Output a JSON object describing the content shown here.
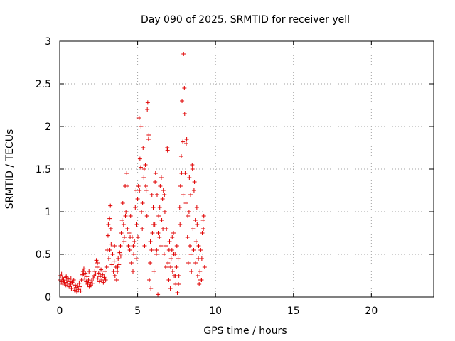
{
  "chart_data": {
    "type": "scatter",
    "title": "Day 090 of 2025, SRMTID for receiver yell",
    "xlabel": "GPS time / hours",
    "ylabel": "SRMTID / TECUs",
    "xlim": [
      0,
      24
    ],
    "ylim": [
      0,
      3
    ],
    "xticks": [
      "0",
      "5",
      "10",
      "15",
      "20"
    ],
    "yticks": [
      "0",
      "0.5",
      "1",
      "1.5",
      "2",
      "2.5",
      "3"
    ],
    "grid": true,
    "marker_color": "#e00000",
    "series": [
      {
        "name": "SRMTID",
        "points": [
          [
            0.0,
            0.2
          ],
          [
            0.05,
            0.25
          ],
          [
            0.1,
            0.18
          ],
          [
            0.15,
            0.22
          ],
          [
            0.2,
            0.15
          ],
          [
            0.25,
            0.2
          ],
          [
            0.3,
            0.17
          ],
          [
            0.35,
            0.23
          ],
          [
            0.4,
            0.14
          ],
          [
            0.45,
            0.19
          ],
          [
            0.5,
            0.16
          ],
          [
            0.55,
            0.21
          ],
          [
            0.6,
            0.12
          ],
          [
            0.65,
            0.18
          ],
          [
            0.7,
            0.15
          ],
          [
            0.75,
            0.1
          ],
          [
            0.8,
            0.17
          ],
          [
            0.85,
            0.13
          ],
          [
            0.9,
            0.2
          ],
          [
            0.95,
            0.08
          ],
          [
            1.0,
            0.14
          ],
          [
            1.05,
            0.11
          ],
          [
            1.1,
            0.06
          ],
          [
            1.15,
            0.13
          ],
          [
            1.2,
            0.09
          ],
          [
            1.25,
            0.16
          ],
          [
            1.3,
            0.12
          ],
          [
            1.35,
            0.07
          ],
          [
            1.4,
            0.2
          ],
          [
            1.45,
            0.26
          ],
          [
            1.5,
            0.3
          ],
          [
            1.55,
            0.33
          ],
          [
            1.6,
            0.22
          ],
          [
            1.65,
            0.28
          ],
          [
            1.7,
            0.18
          ],
          [
            1.75,
            0.24
          ],
          [
            1.8,
            0.15
          ],
          [
            1.85,
            0.2
          ],
          [
            1.9,
            0.12
          ],
          [
            1.95,
            0.17
          ],
          [
            2.0,
            0.14
          ],
          [
            2.05,
            0.19
          ],
          [
            2.1,
            0.16
          ],
          [
            2.15,
            0.22
          ],
          [
            2.2,
            0.25
          ],
          [
            2.25,
            0.3
          ],
          [
            2.3,
            0.27
          ],
          [
            2.35,
            0.43
          ],
          [
            2.4,
            0.35
          ],
          [
            2.45,
            0.22
          ],
          [
            2.5,
            0.28
          ],
          [
            2.55,
            0.18
          ],
          [
            2.6,
            0.24
          ],
          [
            2.65,
            0.32
          ],
          [
            2.7,
            0.2
          ],
          [
            2.75,
            0.26
          ],
          [
            2.8,
            0.17
          ],
          [
            2.85,
            0.23
          ],
          [
            2.9,
            0.3
          ],
          [
            2.95,
            0.2
          ],
          [
            3.0,
            0.35
          ],
          [
            3.05,
            0.55
          ],
          [
            3.1,
            0.72
          ],
          [
            3.15,
            0.45
          ],
          [
            3.2,
            0.92
          ],
          [
            3.25,
            1.07
          ],
          [
            3.3,
            0.62
          ],
          [
            3.35,
            0.38
          ],
          [
            3.4,
            0.5
          ],
          [
            3.45,
            0.3
          ],
          [
            3.5,
            0.42
          ],
          [
            3.55,
            0.25
          ],
          [
            3.6,
            0.35
          ],
          [
            3.65,
            0.2
          ],
          [
            3.7,
            0.3
          ],
          [
            3.75,
            0.45
          ],
          [
            3.8,
            0.38
          ],
          [
            3.85,
            0.52
          ],
          [
            3.9,
            0.6
          ],
          [
            3.95,
            0.75
          ],
          [
            4.0,
            0.9
          ],
          [
            4.05,
            1.1
          ],
          [
            4.1,
            0.85
          ],
          [
            4.15,
            0.7
          ],
          [
            4.2,
            1.3
          ],
          [
            4.25,
            1.0
          ],
          [
            4.3,
            1.45
          ],
          [
            4.35,
            0.8
          ],
          [
            4.4,
            0.6
          ],
          [
            4.45,
            0.75
          ],
          [
            4.5,
            0.55
          ],
          [
            4.55,
            0.95
          ],
          [
            4.6,
            0.4
          ],
          [
            4.65,
            0.7
          ],
          [
            4.7,
            0.3
          ],
          [
            4.75,
            0.5
          ],
          [
            4.8,
            0.65
          ],
          [
            4.85,
            1.05
          ],
          [
            4.9,
            1.25
          ],
          [
            4.95,
            0.85
          ],
          [
            5.0,
            1.15
          ],
          [
            5.05,
            1.3
          ],
          [
            5.1,
            2.1
          ],
          [
            5.15,
            1.62
          ],
          [
            5.2,
            1.52
          ],
          [
            5.25,
            1.0
          ],
          [
            5.3,
            0.8
          ],
          [
            5.35,
            1.75
          ],
          [
            5.4,
            1.4
          ],
          [
            5.45,
            0.6
          ],
          [
            5.5,
            1.55
          ],
          [
            5.55,
            1.25
          ],
          [
            5.6,
            0.95
          ],
          [
            5.65,
            2.28
          ],
          [
            5.7,
            1.85
          ],
          [
            5.75,
            0.2
          ],
          [
            5.8,
            0.4
          ],
          [
            5.85,
            0.1
          ],
          [
            5.9,
            0.55
          ],
          [
            5.95,
            0.75
          ],
          [
            6.0,
            1.05
          ],
          [
            6.05,
            0.3
          ],
          [
            6.1,
            0.85
          ],
          [
            6.15,
            1.45
          ],
          [
            6.2,
            0.5
          ],
          [
            6.25,
            1.2
          ],
          [
            6.3,
            0.03
          ],
          [
            6.35,
            0.95
          ],
          [
            6.4,
            0.7
          ],
          [
            6.45,
            1.3
          ],
          [
            6.5,
            0.6
          ],
          [
            6.55,
            0.9
          ],
          [
            6.6,
            1.15
          ],
          [
            6.65,
            1.25
          ],
          [
            6.7,
            0.5
          ],
          [
            6.75,
            1.0
          ],
          [
            6.8,
            0.35
          ],
          [
            6.85,
            0.8
          ],
          [
            6.9,
            1.75
          ],
          [
            6.95,
            0.4
          ],
          [
            7.0,
            0.2
          ],
          [
            7.05,
            0.65
          ],
          [
            7.1,
            0.1
          ],
          [
            7.15,
            0.45
          ],
          [
            7.2,
            0.55
          ],
          [
            7.25,
            0.3
          ],
          [
            7.3,
            0.75
          ],
          [
            7.35,
            0.25
          ],
          [
            7.4,
            0.5
          ],
          [
            7.45,
            0.15
          ],
          [
            7.5,
            0.35
          ],
          [
            7.55,
            0.05
          ],
          [
            7.6,
            0.45
          ],
          [
            7.65,
            0.25
          ],
          [
            7.7,
            1.05
          ],
          [
            7.75,
            1.3
          ],
          [
            7.8,
            1.65
          ],
          [
            7.85,
            2.3
          ],
          [
            7.9,
            1.82
          ],
          [
            7.95,
            2.85
          ],
          [
            8.0,
            2.45
          ],
          [
            8.05,
            1.45
          ],
          [
            8.1,
            1.1
          ],
          [
            8.15,
            1.85
          ],
          [
            8.2,
            0.7
          ],
          [
            8.25,
            0.4
          ],
          [
            8.3,
            1.0
          ],
          [
            8.35,
            0.6
          ],
          [
            8.4,
            1.2
          ],
          [
            8.45,
            0.3
          ],
          [
            8.5,
            1.55
          ],
          [
            8.55,
            0.8
          ],
          [
            8.6,
            0.55
          ],
          [
            8.65,
            1.35
          ],
          [
            8.7,
            0.9
          ],
          [
            8.75,
            0.65
          ],
          [
            8.8,
            1.05
          ],
          [
            8.85,
            0.25
          ],
          [
            8.9,
            0.45
          ],
          [
            8.95,
            0.15
          ],
          [
            9.0,
            0.3
          ],
          [
            9.05,
            0.55
          ],
          [
            9.1,
            0.2
          ],
          [
            9.15,
            0.75
          ],
          [
            9.2,
            0.9
          ],
          [
            9.25,
            0.95
          ],
          [
            9.3,
            0.35
          ],
          [
            0.12,
            0.27
          ],
          [
            0.42,
            0.24
          ],
          [
            0.72,
            0.22
          ],
          [
            1.52,
            0.27
          ],
          [
            1.88,
            0.3
          ],
          [
            2.42,
            0.4
          ],
          [
            3.12,
            0.85
          ],
          [
            3.22,
            0.55
          ],
          [
            3.28,
            0.8
          ],
          [
            3.52,
            0.6
          ],
          [
            3.72,
            0.35
          ],
          [
            3.92,
            0.48
          ],
          [
            4.12,
            0.65
          ],
          [
            4.22,
            0.95
          ],
          [
            4.32,
            1.3
          ],
          [
            4.52,
            0.7
          ],
          [
            4.72,
            0.6
          ],
          [
            4.92,
            0.45
          ],
          [
            5.02,
            0.7
          ],
          [
            5.12,
            1.25
          ],
          [
            5.22,
            2.0
          ],
          [
            5.32,
            1.1
          ],
          [
            5.42,
            1.5
          ],
          [
            5.52,
            1.3
          ],
          [
            5.62,
            2.2
          ],
          [
            5.72,
            1.9
          ],
          [
            5.82,
            0.65
          ],
          [
            5.92,
            1.2
          ],
          [
            6.02,
            0.85
          ],
          [
            6.12,
            1.35
          ],
          [
            6.22,
            0.55
          ],
          [
            6.32,
            0.75
          ],
          [
            6.42,
            1.05
          ],
          [
            6.52,
            1.4
          ],
          [
            6.62,
            0.8
          ],
          [
            6.72,
            1.2
          ],
          [
            6.82,
            0.6
          ],
          [
            6.92,
            1.72
          ],
          [
            7.02,
            0.55
          ],
          [
            7.12,
            0.35
          ],
          [
            7.22,
            0.7
          ],
          [
            7.32,
            0.5
          ],
          [
            7.42,
            0.25
          ],
          [
            7.52,
            0.6
          ],
          [
            7.62,
            0.15
          ],
          [
            7.72,
            0.85
          ],
          [
            7.82,
            1.45
          ],
          [
            7.92,
            1.2
          ],
          [
            8.02,
            2.15
          ],
          [
            8.12,
            1.8
          ],
          [
            8.22,
            0.95
          ],
          [
            8.32,
            1.4
          ],
          [
            8.42,
            0.5
          ],
          [
            8.52,
            1.5
          ],
          [
            8.62,
            1.25
          ],
          [
            8.72,
            0.4
          ],
          [
            8.82,
            0.85
          ],
          [
            8.92,
            0.6
          ],
          [
            9.02,
            0.2
          ],
          [
            9.12,
            0.45
          ],
          [
            9.22,
            0.8
          ]
        ]
      }
    ]
  }
}
